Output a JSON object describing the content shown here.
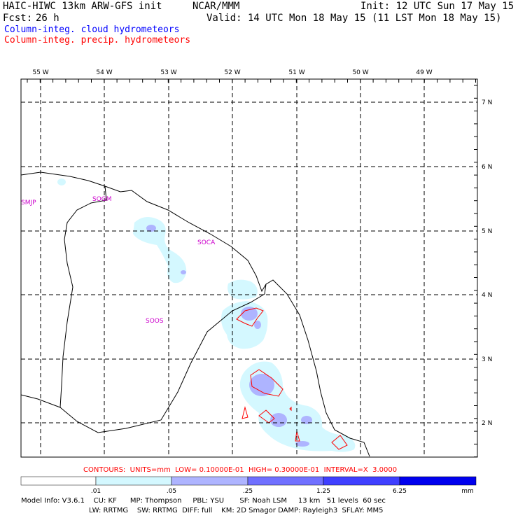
{
  "header": {
    "model": "HAIC-HIWC 13km ARW-GFS init",
    "org": "NCAR/MMM",
    "init": "Init: 12 UTC Sun 17 May 15",
    "fcst_label": "Fcst:",
    "fcst_value": "26 h",
    "valid": "Valid: 14 UTC Mon 18 May 15 (11 LST Mon 18 May 15)"
  },
  "legend": {
    "cloud": "Column-integ. cloud hydrometeors",
    "precip": "Column-integ. precip. hydrometeors",
    "cloud_color": "#0000ff",
    "precip_color": "#ff0000"
  },
  "map": {
    "lon_labels": [
      "55 W",
      "54 W",
      "53 W",
      "52 W",
      "51 W",
      "50 W",
      "49 W"
    ],
    "lat_labels": [
      "7 N",
      "6 N",
      "5 N",
      "4 N",
      "3 N",
      "2 N"
    ],
    "stations": [
      "SMJP",
      "SOGM",
      "SOCA",
      "SOOS"
    ],
    "station_color": "#cc00cc"
  },
  "contours_line": "CONTOURS:  UNITS=mm  LOW= 0.10000E-01  HIGH= 0.30000E-01  INTERVAL=X  3.0000",
  "colorbar": {
    "ticks": [
      ".01",
      ".05",
      ".25",
      "1.25",
      "6.25"
    ],
    "unit": "mm",
    "colors": [
      "#ffffff",
      "#d4f8ff",
      "#aeb4ff",
      "#7070ff",
      "#3f3fff",
      "#0000ee"
    ]
  },
  "footer": {
    "line1": "Model Info: V3.6.1    CU: KF      MP: Thompson     PBL: YSU       SF: Noah LSM     13 km   51 levels  60 sec",
    "line2": "LW: RRTMG    SW: RRTMG  DIFF: full    KM: 2D Smagor DAMP: Rayleigh3  SFLAY: MM5"
  }
}
